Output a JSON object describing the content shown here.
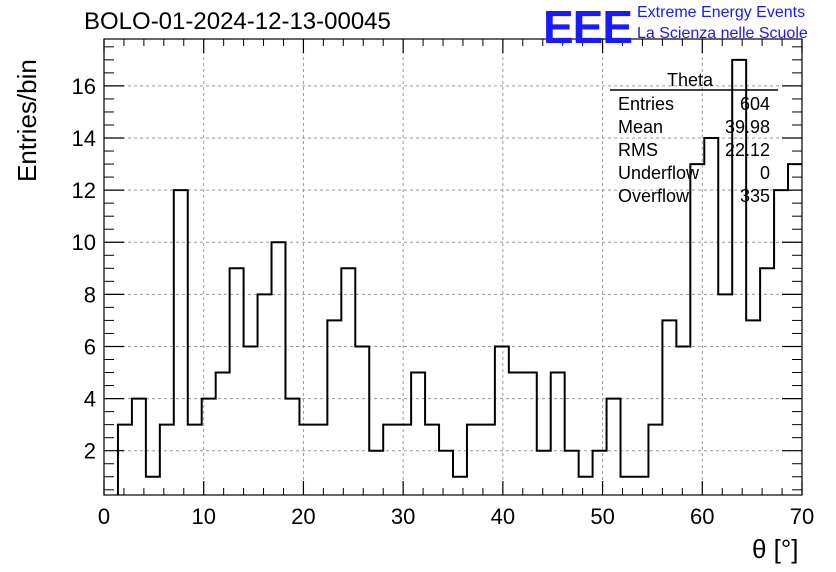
{
  "header": {
    "run_title": "BOLO-01-2024-12-13-00045",
    "logo_text": "EEE",
    "logo_line1": "Extreme Energy Events",
    "logo_line2": "La Scienza nelle Scuole"
  },
  "stats": {
    "title": "Theta",
    "rows": [
      {
        "label": "Entries",
        "value": "604"
      },
      {
        "label": "Mean",
        "value": "39.98"
      },
      {
        "label": "RMS",
        "value": "22.12"
      },
      {
        "label": "Underflow",
        "value": "0"
      },
      {
        "label": "Overflow",
        "value": "335"
      }
    ]
  },
  "colors": {
    "line": "#000000",
    "grid": "#9a9a9a",
    "logo": "#1a1aff"
  },
  "chart_data": {
    "type": "bar",
    "style": "step-histogram",
    "xlabel": "θ [°]",
    "ylabel": "Entries/bin",
    "xlim": [
      0,
      70
    ],
    "ylim": [
      0.3,
      17.8
    ],
    "grid": true,
    "bin_width": 1.4,
    "bin_edges_start": 1.4,
    "values": [
      3,
      4,
      1,
      3,
      12,
      3,
      4,
      5,
      9,
      6,
      8,
      10,
      4,
      3,
      3,
      7,
      9,
      6,
      2,
      3,
      3,
      5,
      3,
      2,
      1,
      3,
      3,
      6,
      5,
      5,
      2,
      5,
      2,
      1,
      2,
      4,
      1,
      1,
      3,
      7,
      6,
      13,
      14,
      8,
      17,
      7,
      9,
      12,
      13
    ],
    "xticks": [
      0,
      10,
      20,
      30,
      40,
      50,
      60,
      70
    ],
    "yticks": [
      2,
      4,
      6,
      8,
      10,
      12,
      14,
      16
    ]
  }
}
